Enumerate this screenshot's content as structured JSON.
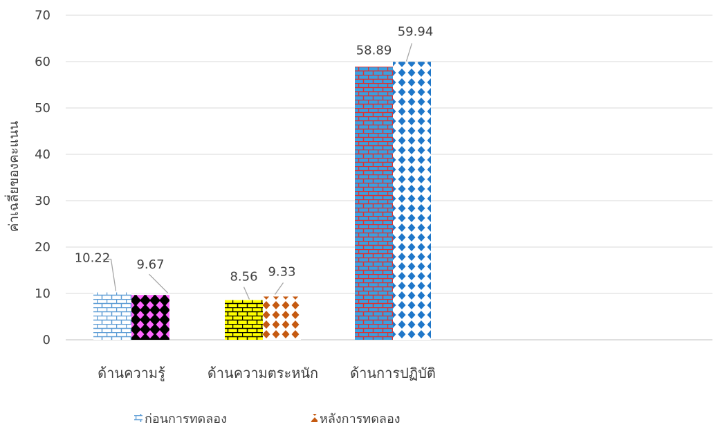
{
  "chart_data": {
    "type": "bar",
    "title": "",
    "xlabel": "",
    "ylabel": "ค่าเฉลี่ยของคะแนน",
    "ylim": [
      0,
      70
    ],
    "yticks": [
      0,
      10,
      20,
      30,
      40,
      50,
      60,
      70
    ],
    "grid": true,
    "legend_position": "bottom",
    "categories": [
      "ด้านความรู้",
      "ด้านความตระหนัก",
      "ด้านการปฏิบัติ"
    ],
    "series": [
      {
        "name": "ก่อนการทดลอง",
        "values": [
          10.22,
          8.56,
          58.89
        ]
      },
      {
        "name": "หลังการทดลอง",
        "values": [
          9.67,
          9.33,
          59.94
        ]
      }
    ],
    "data_labels": [
      [
        "10.22",
        "8.56",
        "58.89"
      ],
      [
        "9.67",
        "9.33",
        "59.94"
      ]
    ],
    "bar_fills": [
      [
        {
          "pattern": "brick",
          "bg": "#ffffff",
          "fg": "#5b9bd5"
        },
        {
          "pattern": "brick",
          "bg": "#ffff00",
          "fg": "#000000"
        },
        {
          "pattern": "brick",
          "bg": "#3aa0e0",
          "fg": "#e03030"
        }
      ],
      [
        {
          "pattern": "diamond",
          "bg": "#000000",
          "fg": "#ff66ff"
        },
        {
          "pattern": "diamond",
          "bg": "#ffffff",
          "fg": "#c55a11"
        },
        {
          "pattern": "diamond",
          "bg": "#ffffff",
          "fg": "#1f77c9"
        }
      ]
    ],
    "legend_swatches": [
      {
        "pattern": "brick",
        "bg": "#ffffff",
        "fg": "#5b9bd5"
      },
      {
        "pattern": "diamond",
        "bg": "#ffffff",
        "fg": "#c55a11"
      }
    ],
    "colors": {
      "axis": "#bfbfbf",
      "grid": "#d9d9d9",
      "text": "#404040",
      "leader": "#a6a6a6"
    }
  }
}
